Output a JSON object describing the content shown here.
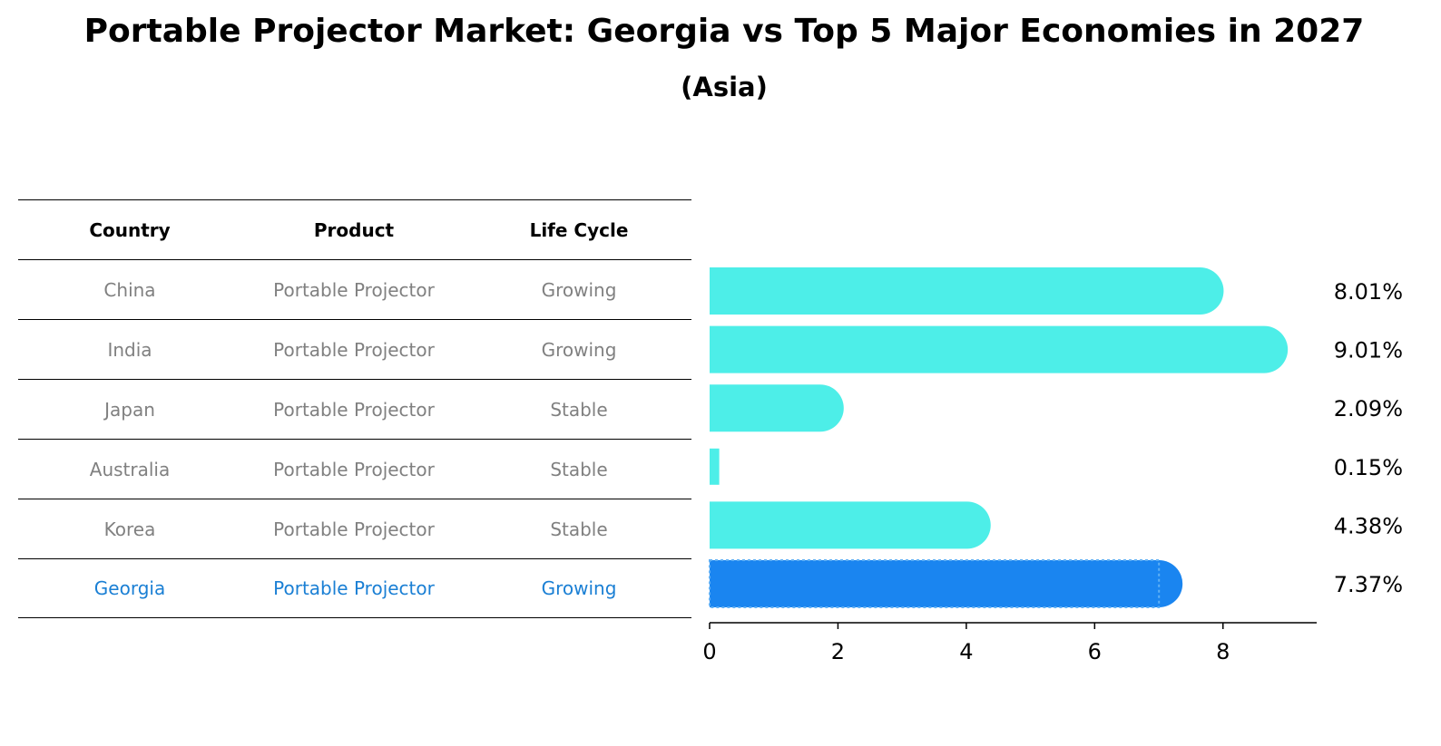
{
  "title": "Portable Projector Market: Georgia vs Top 5 Major Economies in 2027",
  "subtitle": "(Asia)",
  "table": {
    "headers": [
      "Country",
      "Product",
      "Life Cycle"
    ],
    "rows": [
      [
        "China",
        "Portable Projector",
        "Growing"
      ],
      [
        "India",
        "Portable Projector",
        "Growing"
      ],
      [
        "Japan",
        "Portable Projector",
        "Stable"
      ],
      [
        "Australia",
        "Portable Projector",
        "Stable"
      ],
      [
        "Korea",
        "Portable Projector",
        "Stable"
      ],
      [
        "Georgia",
        "Portable Projector",
        "Growing"
      ]
    ],
    "highlight_row": "Georgia"
  },
  "chart_data": {
    "type": "bar",
    "orientation": "horizontal",
    "categories": [
      "China",
      "India",
      "Japan",
      "Australia",
      "Korea",
      "Georgia"
    ],
    "values": [
      8.01,
      9.01,
      2.09,
      0.15,
      4.38,
      7.37
    ],
    "value_labels": [
      "8.01%",
      "9.01%",
      "2.09%",
      "0.15%",
      "4.38%",
      "7.37%"
    ],
    "xticks": [
      "0",
      "2",
      "4",
      "6",
      "8"
    ],
    "xlim": [
      0,
      9.46
    ],
    "grid": false,
    "colors": {
      "default": "#4deee8",
      "highlight": "#1a85f0"
    },
    "highlight": "Georgia"
  }
}
